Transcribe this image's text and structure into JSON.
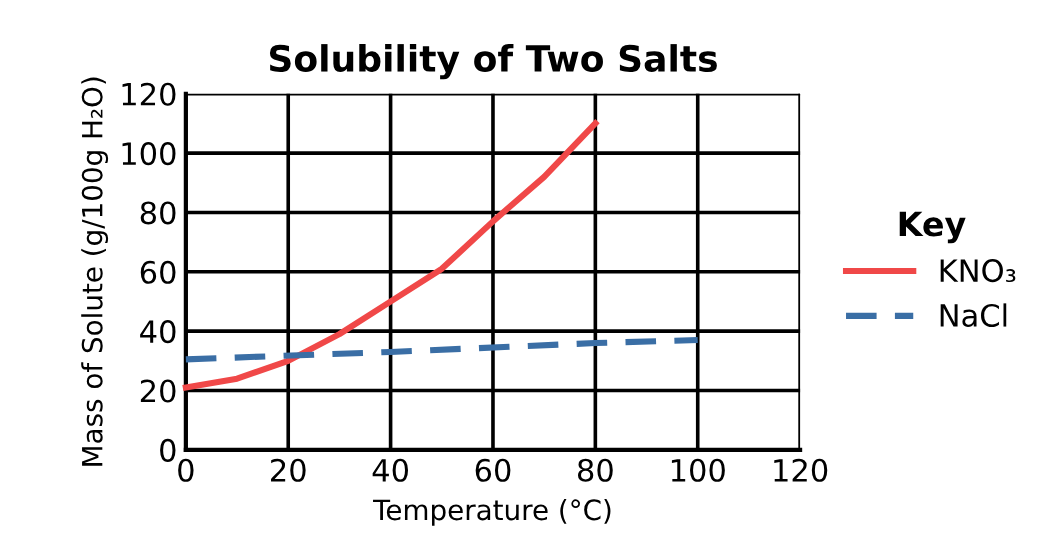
{
  "chart_data": {
    "type": "line",
    "title": "Solubility of Two Salts",
    "xlabel": "Temperature (°C)",
    "ylabel": "Mass of Solute (g/100g H₂O)",
    "legend_title": "Key",
    "legend": "right",
    "xlim": [
      0,
      120
    ],
    "xticks": [
      0,
      20,
      40,
      60,
      80,
      100,
      120
    ],
    "ylim": [
      0,
      120
    ],
    "yticks": [
      0,
      20,
      40,
      60,
      80,
      100,
      120
    ],
    "grid": true,
    "series": [
      {
        "name": "KNO₃",
        "color": "#f04848",
        "line_style": "solid",
        "x": [
          0,
          10,
          20,
          30,
          40,
          50,
          60,
          70,
          80
        ],
        "values": [
          21,
          24,
          30,
          39,
          50,
          61,
          77,
          92,
          110
        ]
      },
      {
        "name": "NaCl",
        "color": "#3a6ea5",
        "line_style": "dashed",
        "x": [
          0,
          40,
          80,
          100
        ],
        "values": [
          30.5,
          33,
          36,
          37
        ]
      }
    ]
  }
}
